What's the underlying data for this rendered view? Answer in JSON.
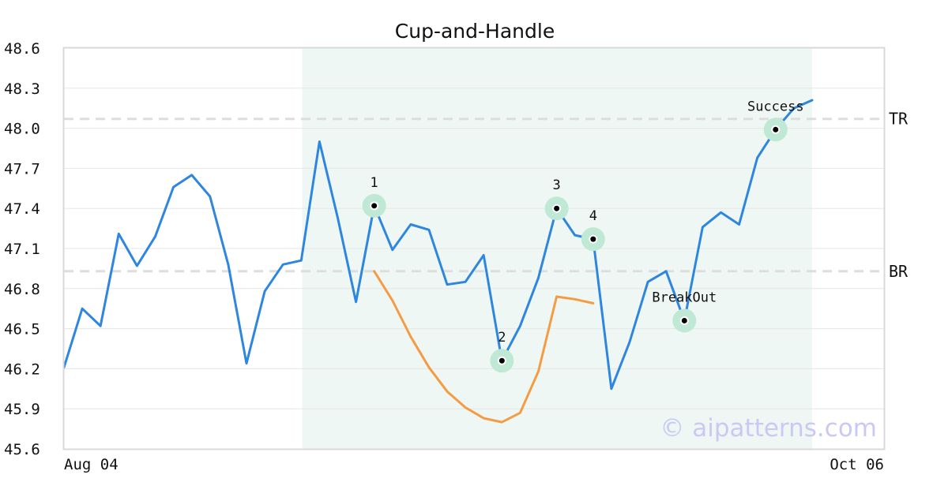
{
  "chart_data": {
    "type": "line",
    "title": "Cup-and-Handle",
    "watermark": "© aipatterns.com",
    "ylim": [
      45.6,
      48.6
    ],
    "y_ticks": [
      "45.6",
      "45.9",
      "46.2",
      "46.5",
      "46.8",
      "47.1",
      "47.4",
      "47.7",
      "48.0",
      "48.3",
      "48.6"
    ],
    "x_tick_labels": [
      "Aug 04",
      "Oct 06"
    ],
    "grid": "horizontal",
    "highlight_region": {
      "from_index": 15,
      "to_index": 41,
      "color": "#eef7f3"
    },
    "colors": {
      "price": "#2e86de",
      "cup": "#f39c45",
      "marker_ring": "#bfe8d5",
      "ref_line": "#dddddd",
      "grid": "#e6e6e6"
    },
    "series": [
      {
        "values": [
          46.21,
          46.65,
          46.52,
          47.21,
          46.97,
          47.19,
          47.56,
          47.65,
          47.49,
          46.98,
          46.24,
          46.78,
          46.98,
          47.01,
          47.9,
          47.33,
          46.7,
          47.42,
          47.09,
          47.28,
          47.24,
          46.83,
          46.85,
          47.05,
          46.26,
          46.52,
          46.88,
          47.4,
          47.2,
          47.17,
          46.05,
          46.4,
          46.85,
          46.93,
          46.56,
          47.26,
          47.37,
          47.28,
          47.78,
          47.99,
          48.15,
          48.21
        ]
      },
      {
        "start_index": 17,
        "values": [
          46.93,
          46.71,
          46.44,
          46.21,
          46.03,
          45.91,
          45.83,
          45.8,
          45.87,
          46.18,
          46.74,
          46.72,
          46.69
        ]
      }
    ],
    "reference_lines": [
      {
        "label": "TR",
        "value": 48.07
      },
      {
        "label": "BR",
        "value": 46.93
      }
    ],
    "annotations": [
      {
        "label": "1",
        "index": 17,
        "value": 47.42
      },
      {
        "label": "2",
        "index": 24,
        "value": 46.26
      },
      {
        "label": "3",
        "index": 27,
        "value": 47.4
      },
      {
        "label": "4",
        "index": 29,
        "value": 47.17
      },
      {
        "label": "BreakOut",
        "index": 34,
        "value": 46.56
      },
      {
        "label": "Success",
        "index": 39,
        "value": 47.99
      }
    ]
  }
}
